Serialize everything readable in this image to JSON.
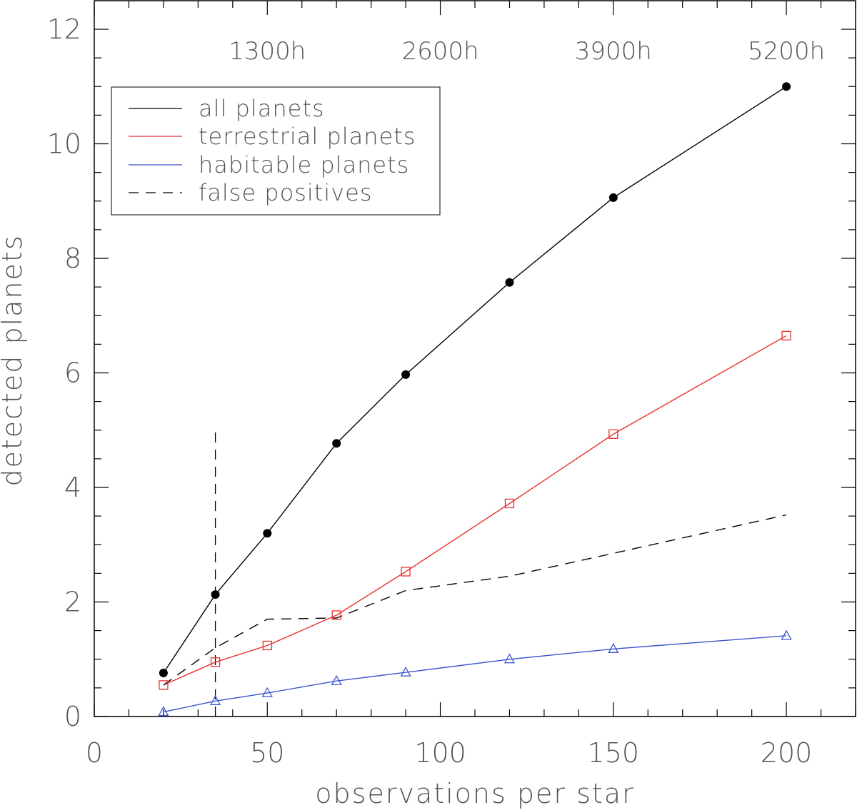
{
  "chart_data": {
    "type": "line",
    "xlabel": "observations per star",
    "ylabel": "detected planets",
    "xlim": [
      0,
      220
    ],
    "ylim": [
      0,
      12
    ],
    "x_ticks": [
      0,
      50,
      100,
      150,
      200
    ],
    "y_ticks": [
      0,
      2,
      4,
      6,
      8,
      10,
      12
    ],
    "x_tick_labels": [
      "0",
      "50",
      "100",
      "150",
      "200"
    ],
    "y_tick_labels": [
      "0",
      "2",
      "4",
      "6",
      "8",
      "10",
      "12"
    ],
    "grid": false,
    "legend_position": "top-left",
    "top_annotations": [
      {
        "x": 50,
        "label": "1300h"
      },
      {
        "x": 100,
        "label": "2600h"
      },
      {
        "x": 150,
        "label": "3900h"
      },
      {
        "x": 200,
        "label": "5200h"
      }
    ],
    "vertical_marker": {
      "x": 35,
      "y_range": [
        0,
        5
      ],
      "style": "dashed"
    },
    "x": [
      20,
      35,
      50,
      70,
      90,
      120,
      150,
      200
    ],
    "series": [
      {
        "name": "all planets",
        "color": "#000000",
        "dash": "solid",
        "marker": "filled-circle",
        "values": [
          0.76,
          2.13,
          3.2,
          4.77,
          5.97,
          7.58,
          9.06,
          11.0
        ]
      },
      {
        "name": "terrestrial planets",
        "color": "#e8302e",
        "dash": "solid",
        "marker": "open-square",
        "values": [
          0.55,
          0.95,
          1.24,
          1.77,
          2.53,
          3.72,
          4.93,
          6.65
        ]
      },
      {
        "name": "habitable planets",
        "color": "#3b55cf",
        "dash": "solid",
        "marker": "open-triangle",
        "values": [
          0.08,
          0.27,
          0.41,
          0.62,
          0.77,
          1.0,
          1.18,
          1.41
        ]
      },
      {
        "name": "false positives",
        "color": "#000000",
        "dash": "dashed",
        "marker": "none",
        "values": [
          0.55,
          1.2,
          1.7,
          1.72,
          2.2,
          2.45,
          2.85,
          3.52
        ]
      }
    ]
  }
}
